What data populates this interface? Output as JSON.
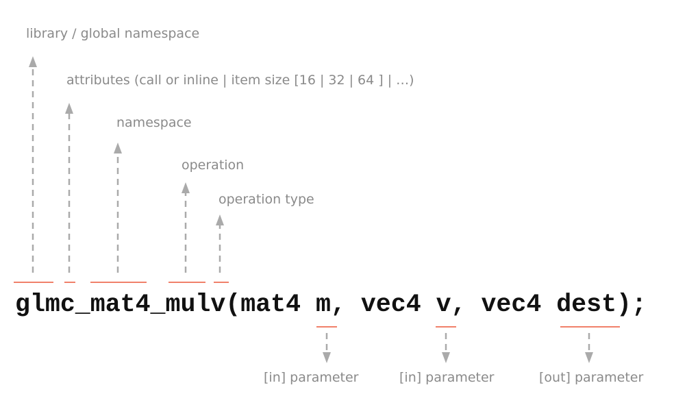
{
  "code": "glmc_mat4_mulv(mat4 m, vec4 v, vec4 dest);",
  "labels": {
    "library": "library / global namespace",
    "attributes": "attributes (call or inline | item size [16 | 32 | 64 ] | …)",
    "namespace": "namespace",
    "operation": "operation",
    "operation_type": "operation type",
    "param_m": "[in] parameter",
    "param_v": "[in] parameter",
    "param_dest": "[out] parameter"
  },
  "colors": {
    "underline": "#f0806a",
    "arrow": "#aaaaaa",
    "label": "#8a8a8a",
    "code": "#111111"
  }
}
